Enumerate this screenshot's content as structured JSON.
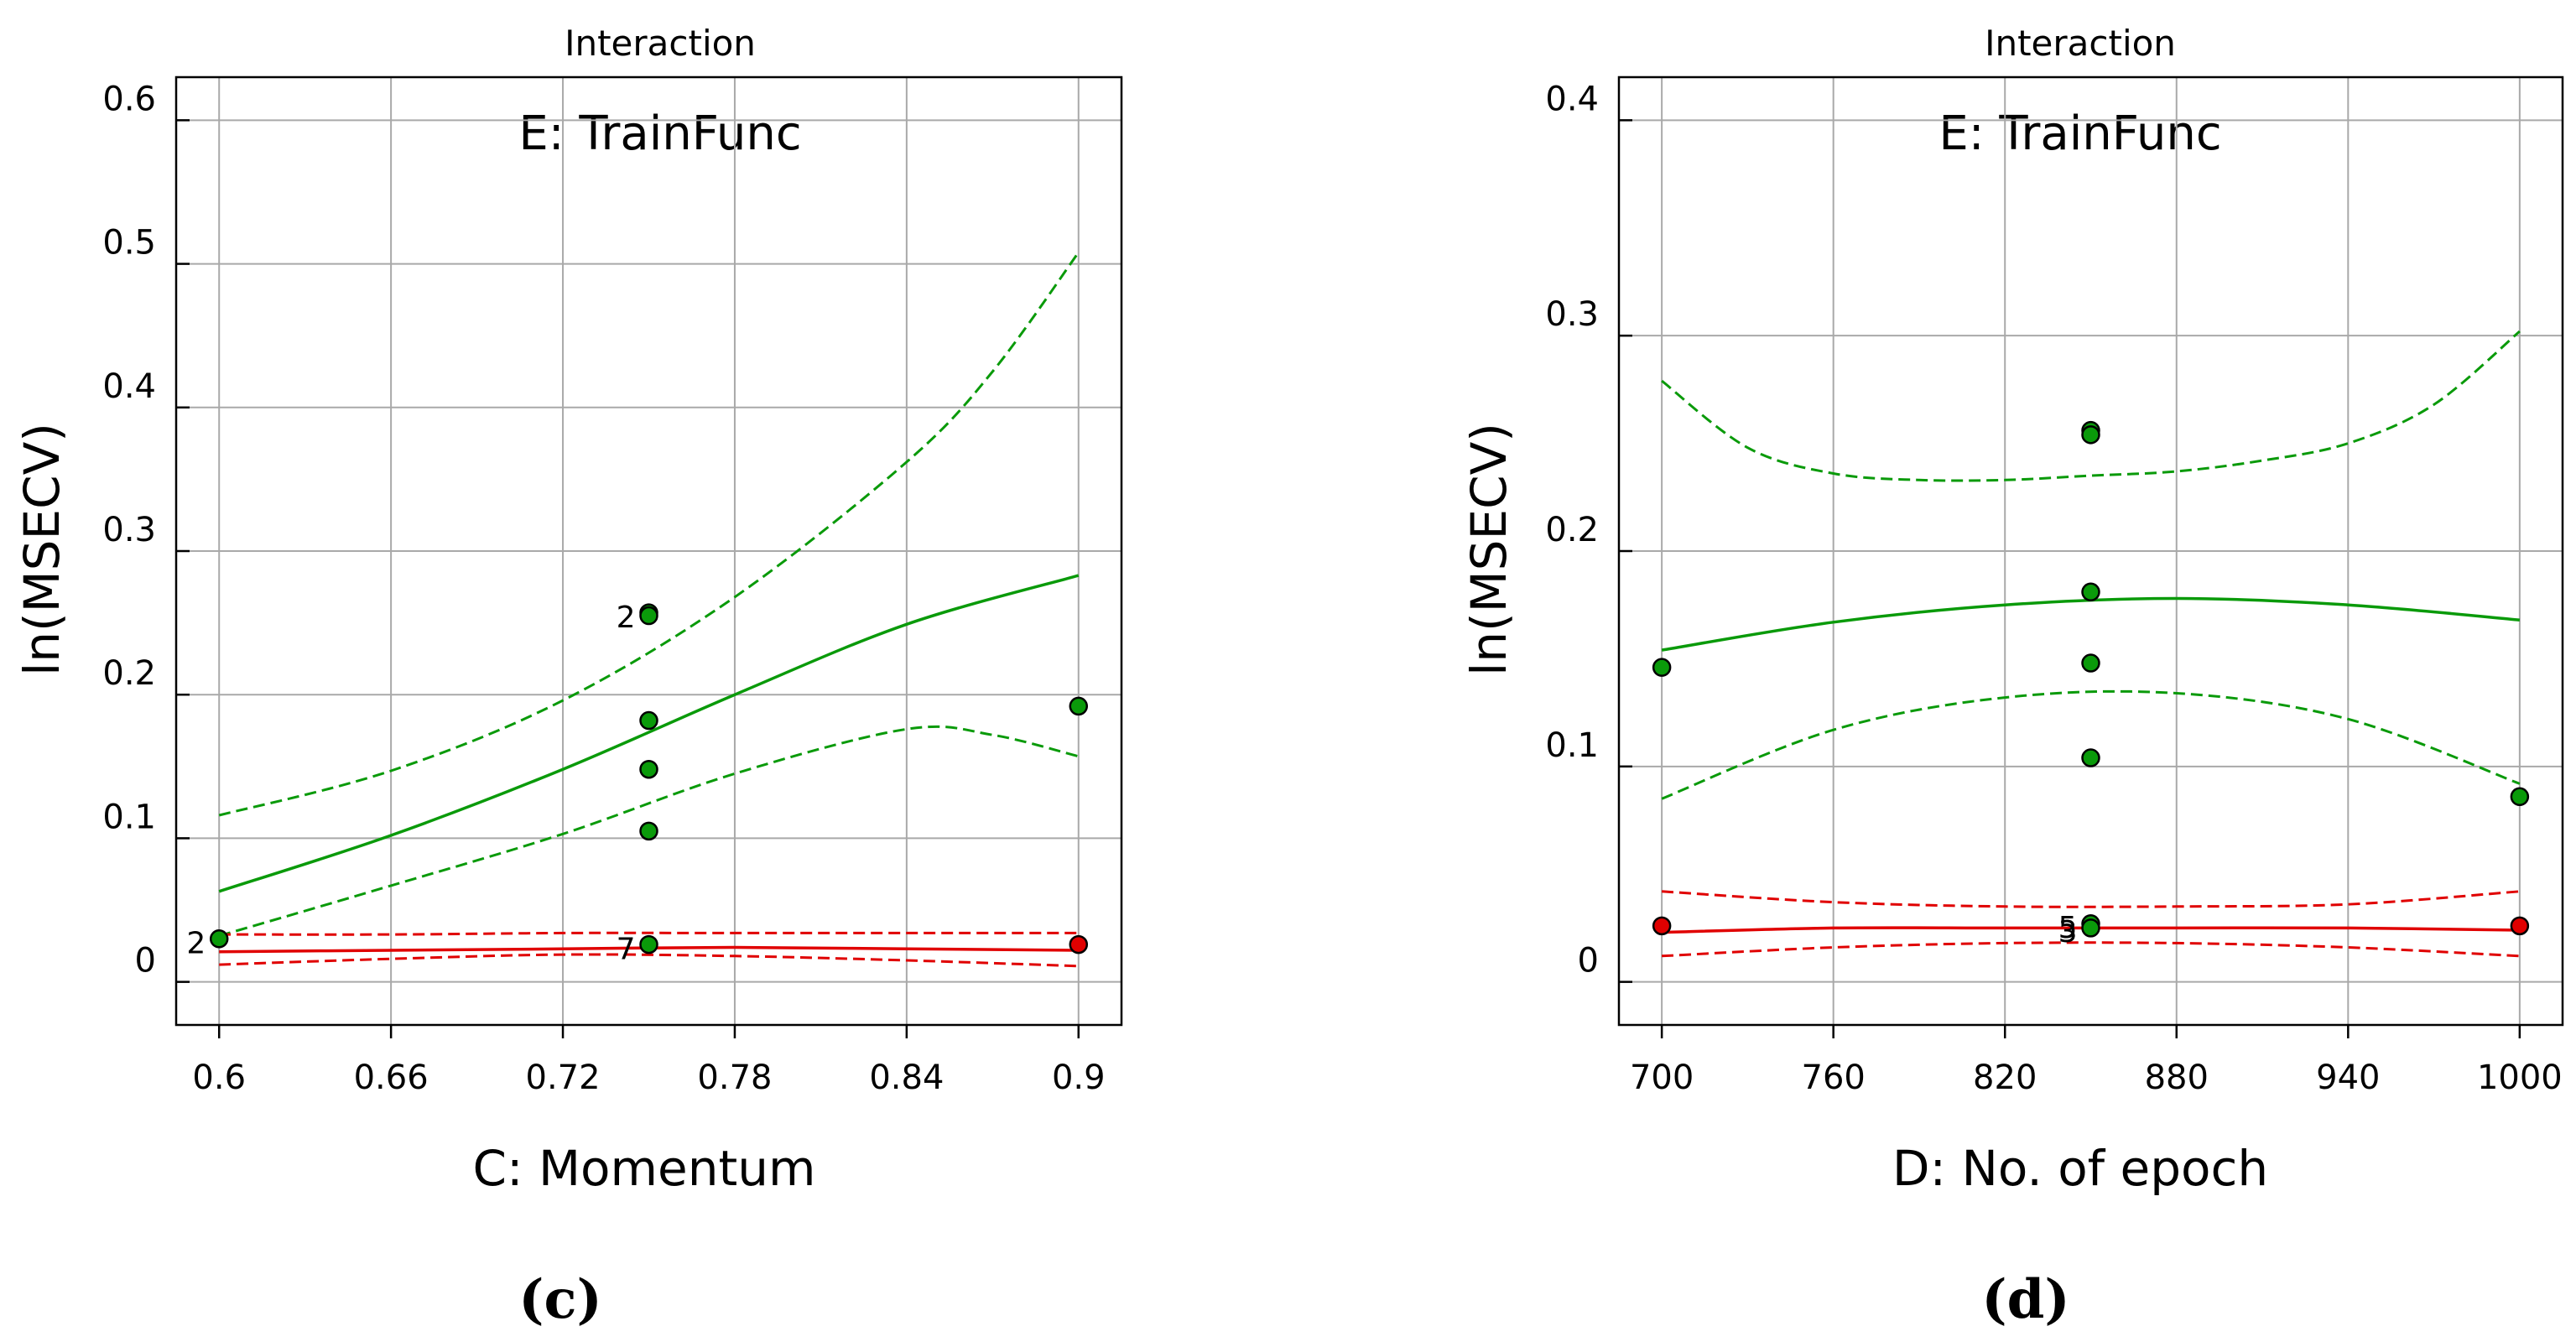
{
  "colors": {
    "green": "#0a9a0a",
    "red": "#e00000",
    "grid": "#a9a9a9",
    "axis": "#000000"
  },
  "chart_data": [
    {
      "type": "line",
      "panel_label": "(c)",
      "title": "Interaction",
      "annotation": "E: TrainFunc",
      "xlabel": "C: Momentum",
      "ylabel": "ln(MSECV)",
      "x_ticks": [
        "0.6",
        "0.66",
        "0.72",
        "0.78",
        "0.84",
        "0.9"
      ],
      "y_ticks": [
        "0",
        "0.1",
        "0.2",
        "0.3",
        "0.4",
        "0.5",
        "0.6"
      ],
      "xlim": [
        0.585,
        0.915
      ],
      "ylim": [
        -0.03,
        0.63
      ],
      "grid": true,
      "series": [
        {
          "name": "E level 1 (green) prediction",
          "color": "green",
          "style": "solid",
          "x": [
            0.6,
            0.66,
            0.72,
            0.78,
            0.84,
            0.9
          ],
          "y": [
            0.063,
            0.102,
            0.148,
            0.2,
            0.249,
            0.283
          ]
        },
        {
          "name": "E level 1 (green) upper limit",
          "color": "green",
          "style": "dashed",
          "x": [
            0.6,
            0.66,
            0.72,
            0.78,
            0.84,
            0.87,
            0.9
          ],
          "y": [
            0.116,
            0.147,
            0.196,
            0.268,
            0.362,
            0.425,
            0.508
          ]
        },
        {
          "name": "E level 1 (green) lower limit",
          "color": "green",
          "style": "dashed",
          "x": [
            0.6,
            0.66,
            0.72,
            0.78,
            0.84,
            0.87,
            0.9
          ],
          "y": [
            0.032,
            0.067,
            0.103,
            0.145,
            0.176,
            0.172,
            0.157
          ]
        },
        {
          "name": "E level 2 (red) prediction",
          "color": "red",
          "style": "solid",
          "x": [
            0.6,
            0.66,
            0.72,
            0.78,
            0.84,
            0.9
          ],
          "y": [
            0.021,
            0.022,
            0.023,
            0.024,
            0.023,
            0.022
          ]
        },
        {
          "name": "E level 2 (red) upper limit",
          "color": "red",
          "style": "dashed",
          "x": [
            0.6,
            0.66,
            0.72,
            0.78,
            0.84,
            0.9
          ],
          "y": [
            0.033,
            0.033,
            0.034,
            0.034,
            0.034,
            0.034
          ]
        },
        {
          "name": "E level 2 (red) lower limit",
          "color": "red",
          "style": "dashed",
          "x": [
            0.6,
            0.66,
            0.72,
            0.78,
            0.84,
            0.9
          ],
          "y": [
            0.012,
            0.016,
            0.019,
            0.018,
            0.015,
            0.011
          ]
        }
      ],
      "points": [
        {
          "x": 0.6,
          "y": 0.03,
          "color": "green"
        },
        {
          "x": 0.75,
          "y": 0.257,
          "color": "green"
        },
        {
          "x": 0.75,
          "y": 0.255,
          "color": "green"
        },
        {
          "x": 0.75,
          "y": 0.182,
          "color": "green"
        },
        {
          "x": 0.75,
          "y": 0.148,
          "color": "green"
        },
        {
          "x": 0.75,
          "y": 0.105,
          "color": "green"
        },
        {
          "x": 0.75,
          "y": 0.026,
          "color": "green"
        },
        {
          "x": 0.9,
          "y": 0.192,
          "color": "green"
        },
        {
          "x": 0.9,
          "y": 0.026,
          "color": "red"
        }
      ],
      "point_labels": [
        {
          "text": "2",
          "x": 0.75,
          "y": 0.255
        },
        {
          "text": "2",
          "x": 0.6,
          "y": 0.028
        },
        {
          "text": "7",
          "x": 0.75,
          "y": 0.024
        }
      ]
    },
    {
      "type": "line",
      "panel_label": "(d)",
      "title": "Interaction",
      "annotation": "E: TrainFunc",
      "xlabel": "D: No. of epoch",
      "ylabel": "ln(MSECV)",
      "x_ticks": [
        "700",
        "760",
        "820",
        "880",
        "940",
        "1000"
      ],
      "y_ticks": [
        "0",
        "0.1",
        "0.2",
        "0.3",
        "0.4"
      ],
      "xlim": [
        685,
        1015
      ],
      "ylim": [
        -0.02,
        0.42
      ],
      "grid": true,
      "series": [
        {
          "name": "E level 1 (green) prediction",
          "color": "green",
          "style": "solid",
          "x": [
            700,
            760,
            820,
            880,
            940,
            1000
          ],
          "y": [
            0.154,
            0.167,
            0.175,
            0.178,
            0.175,
            0.168
          ]
        },
        {
          "name": "E level 1 (green) upper limit",
          "color": "green",
          "style": "dashed",
          "x": [
            700,
            730,
            760,
            790,
            820,
            850,
            880,
            910,
            940,
            970,
            1000
          ],
          "y": [
            0.279,
            0.248,
            0.236,
            0.233,
            0.233,
            0.235,
            0.237,
            0.242,
            0.25,
            0.268,
            0.302
          ]
        },
        {
          "name": "E level 1 (green) lower limit",
          "color": "green",
          "style": "dashed",
          "x": [
            700,
            760,
            820,
            880,
            940,
            1000
          ],
          "y": [
            0.085,
            0.117,
            0.132,
            0.134,
            0.122,
            0.092
          ]
        },
        {
          "name": "E level 2 (red) prediction",
          "color": "red",
          "style": "solid",
          "x": [
            700,
            760,
            820,
            880,
            940,
            1000
          ],
          "y": [
            0.023,
            0.025,
            0.025,
            0.025,
            0.025,
            0.024
          ]
        },
        {
          "name": "E level 2 (red) upper limit",
          "color": "red",
          "style": "dashed",
          "x": [
            700,
            760,
            820,
            880,
            940,
            1000
          ],
          "y": [
            0.042,
            0.037,
            0.035,
            0.035,
            0.036,
            0.042
          ]
        },
        {
          "name": "E level 2 (red) lower limit",
          "color": "red",
          "style": "dashed",
          "x": [
            700,
            760,
            820,
            880,
            940,
            1000
          ],
          "y": [
            0.012,
            0.016,
            0.018,
            0.018,
            0.016,
            0.012
          ]
        }
      ],
      "points": [
        {
          "x": 700,
          "y": 0.146,
          "color": "green"
        },
        {
          "x": 700,
          "y": 0.026,
          "color": "red"
        },
        {
          "x": 850,
          "y": 0.256,
          "color": "green"
        },
        {
          "x": 850,
          "y": 0.254,
          "color": "green"
        },
        {
          "x": 850,
          "y": 0.181,
          "color": "green"
        },
        {
          "x": 850,
          "y": 0.148,
          "color": "green"
        },
        {
          "x": 850,
          "y": 0.104,
          "color": "green"
        },
        {
          "x": 850,
          "y": 0.027,
          "color": "green"
        },
        {
          "x": 850,
          "y": 0.025,
          "color": "green"
        },
        {
          "x": 1000,
          "y": 0.086,
          "color": "green"
        },
        {
          "x": 1000,
          "y": 0.026,
          "color": "red"
        }
      ],
      "point_labels": [
        {
          "text": "5",
          "x": 850,
          "y": 0.026
        },
        {
          "text": "3",
          "x": 850,
          "y": 0.024
        }
      ]
    }
  ]
}
